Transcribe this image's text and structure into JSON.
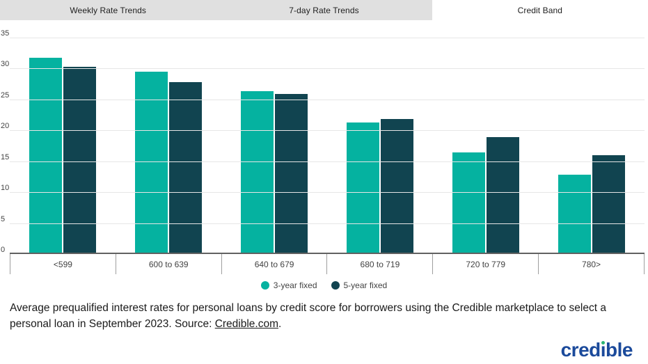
{
  "tabs": [
    {
      "label": "Weekly Rate Trends",
      "active": false
    },
    {
      "label": "7-day Rate Trends",
      "active": false
    },
    {
      "label": "Credit Band",
      "active": true
    }
  ],
  "chart_data": {
    "type": "bar",
    "title": "",
    "categories": [
      "<599",
      "600 to 639",
      "640 to 679",
      "680 to 719",
      "720 to 779",
      "780>"
    ],
    "series": [
      {
        "name": "3-year fixed",
        "color": "#05b2a0",
        "values": [
          31.7,
          29.5,
          26.3,
          21.2,
          16.3,
          12.7
        ]
      },
      {
        "name": "5-year fixed",
        "color": "#114450",
        "values": [
          30.3,
          27.8,
          25.8,
          21.8,
          18.8,
          15.9
        ]
      }
    ],
    "ylim": [
      0,
      35
    ],
    "ytick_step": 5,
    "grid": "horizontal",
    "legend_position": "bottom",
    "xlabel": "",
    "ylabel": ""
  },
  "caption": {
    "text_before": "Average prequalified interest rates for personal loans by credit score for borrowers using the Credible marketplace to select a personal loan in September 2023. Source: ",
    "link_text": "Credible.com",
    "text_after": "."
  },
  "logo": {
    "pre": "cred",
    "i": "ı",
    "post": "ble"
  },
  "colors": {
    "series_3yr": "#05b2a0",
    "series_5yr": "#114450",
    "tab_inactive_bg": "#e0e0e0",
    "gridline": "#e6e6e6",
    "axis_line": "#616161",
    "logo_blue": "#1b4a9b",
    "logo_dot_green": "#2ab573"
  }
}
